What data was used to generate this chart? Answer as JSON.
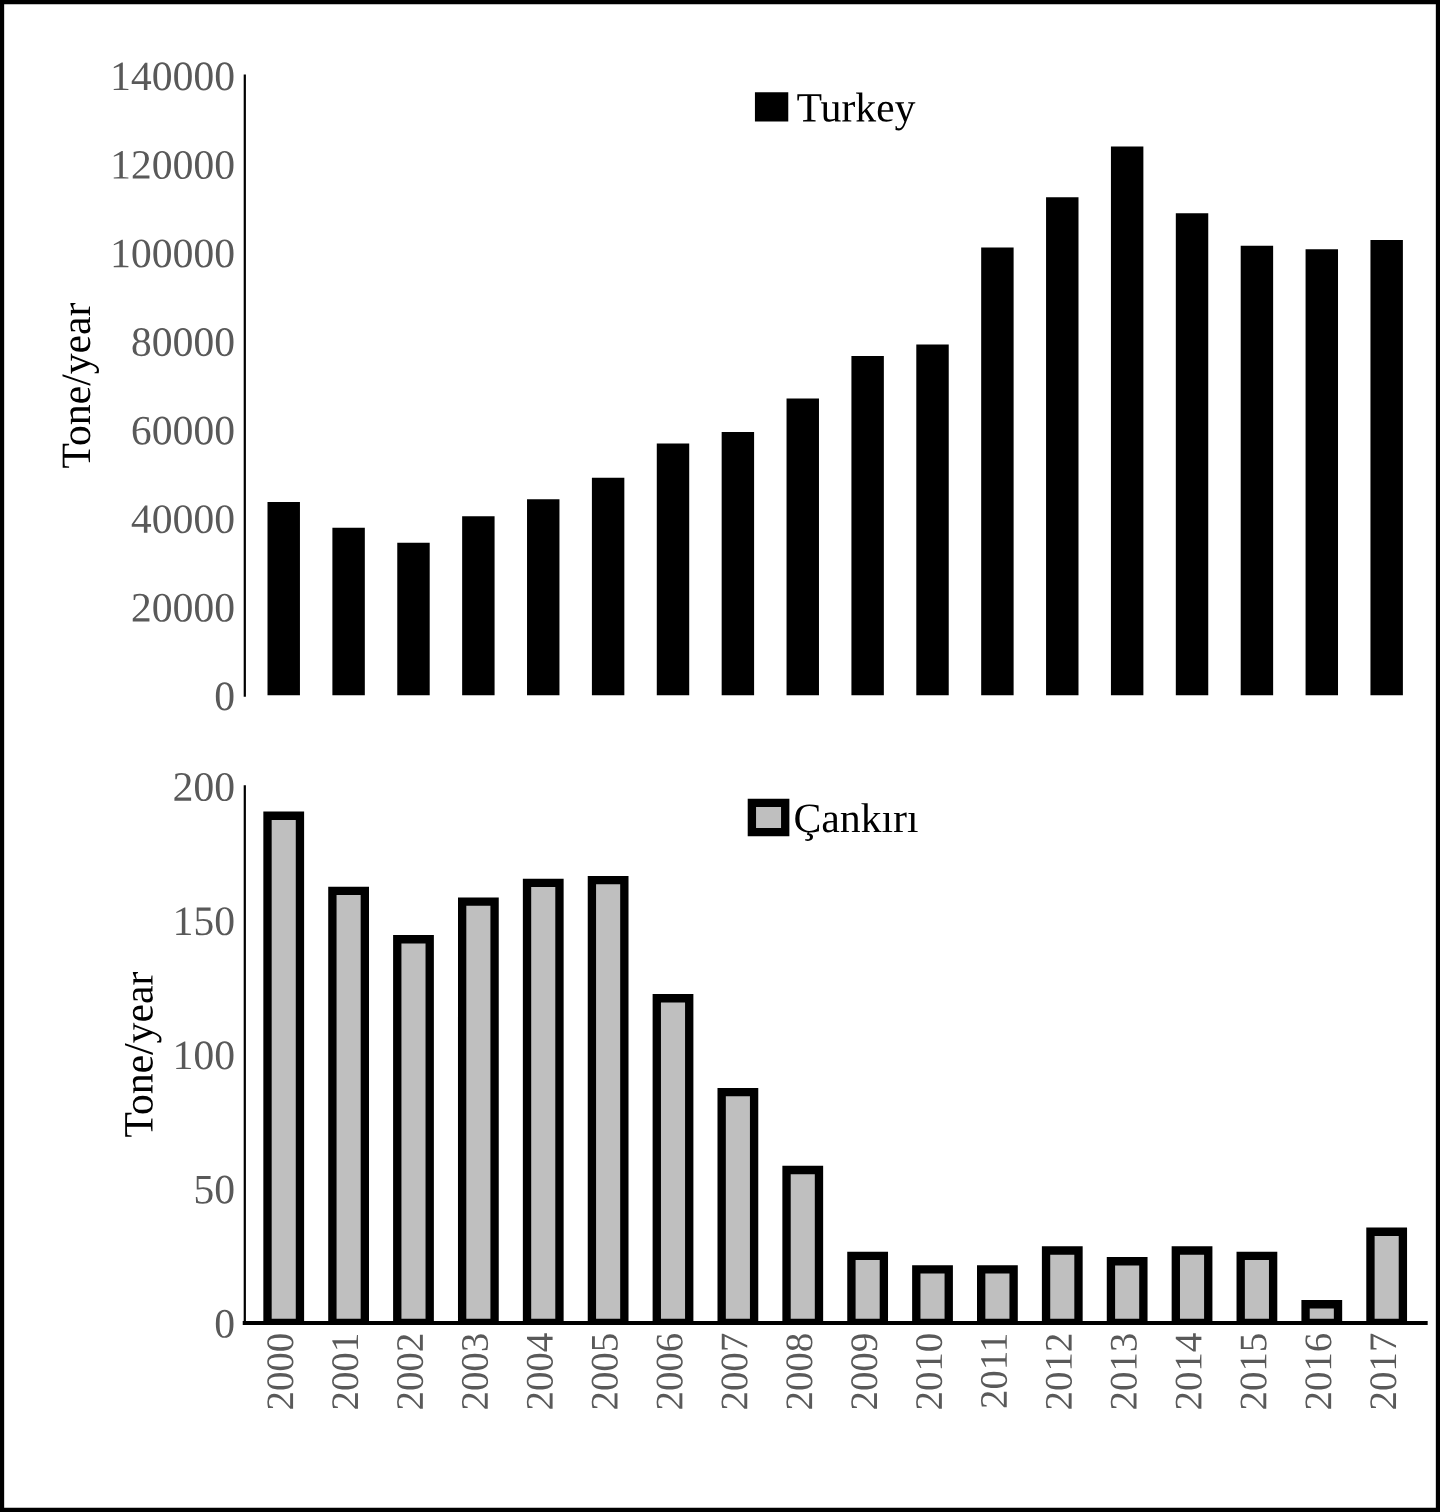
{
  "chart_data": [
    {
      "type": "bar",
      "ylabel": "Tone/year",
      "categories": [
        "2000",
        "2001",
        "2002",
        "2003",
        "2004",
        "2005",
        "2006",
        "2007",
        "2008",
        "2009",
        "2010",
        "2011",
        "2012",
        "2013",
        "2014",
        "2015",
        "2016",
        "2017"
      ],
      "series": [
        {
          "name": "Turkey",
          "color": "#000000",
          "values": [
            43700,
            37900,
            34500,
            40500,
            44300,
            49200,
            56900,
            59500,
            67100,
            76700,
            79300,
            101200,
            112500,
            124000,
            108900,
            101600,
            100800,
            102900
          ]
        }
      ],
      "ylim": [
        0,
        140000
      ],
      "yticks": [
        0,
        20000,
        40000,
        60000,
        80000,
        100000,
        120000,
        140000
      ],
      "tick_labels": "y",
      "legend": "top",
      "grid": false
    },
    {
      "type": "bar",
      "ylabel": "Tone/year",
      "categories": [
        "2000",
        "2001",
        "2002",
        "2003",
        "2004",
        "2005",
        "2006",
        "2007",
        "2008",
        "2009",
        "2010",
        "2011",
        "2012",
        "2013",
        "2014",
        "2015",
        "2016",
        "2017"
      ],
      "series": [
        {
          "name": "Çankırı",
          "color": "#bfbfbf",
          "values": [
            189,
            161,
            143,
            157,
            164,
            165,
            121,
            86,
            57,
            25,
            20,
            20,
            27,
            23,
            27,
            25,
            7,
            34
          ]
        }
      ],
      "ylim": [
        0,
        200
      ],
      "yticks": [
        0,
        50,
        100,
        150,
        200
      ],
      "legend": "top",
      "grid": false
    }
  ]
}
